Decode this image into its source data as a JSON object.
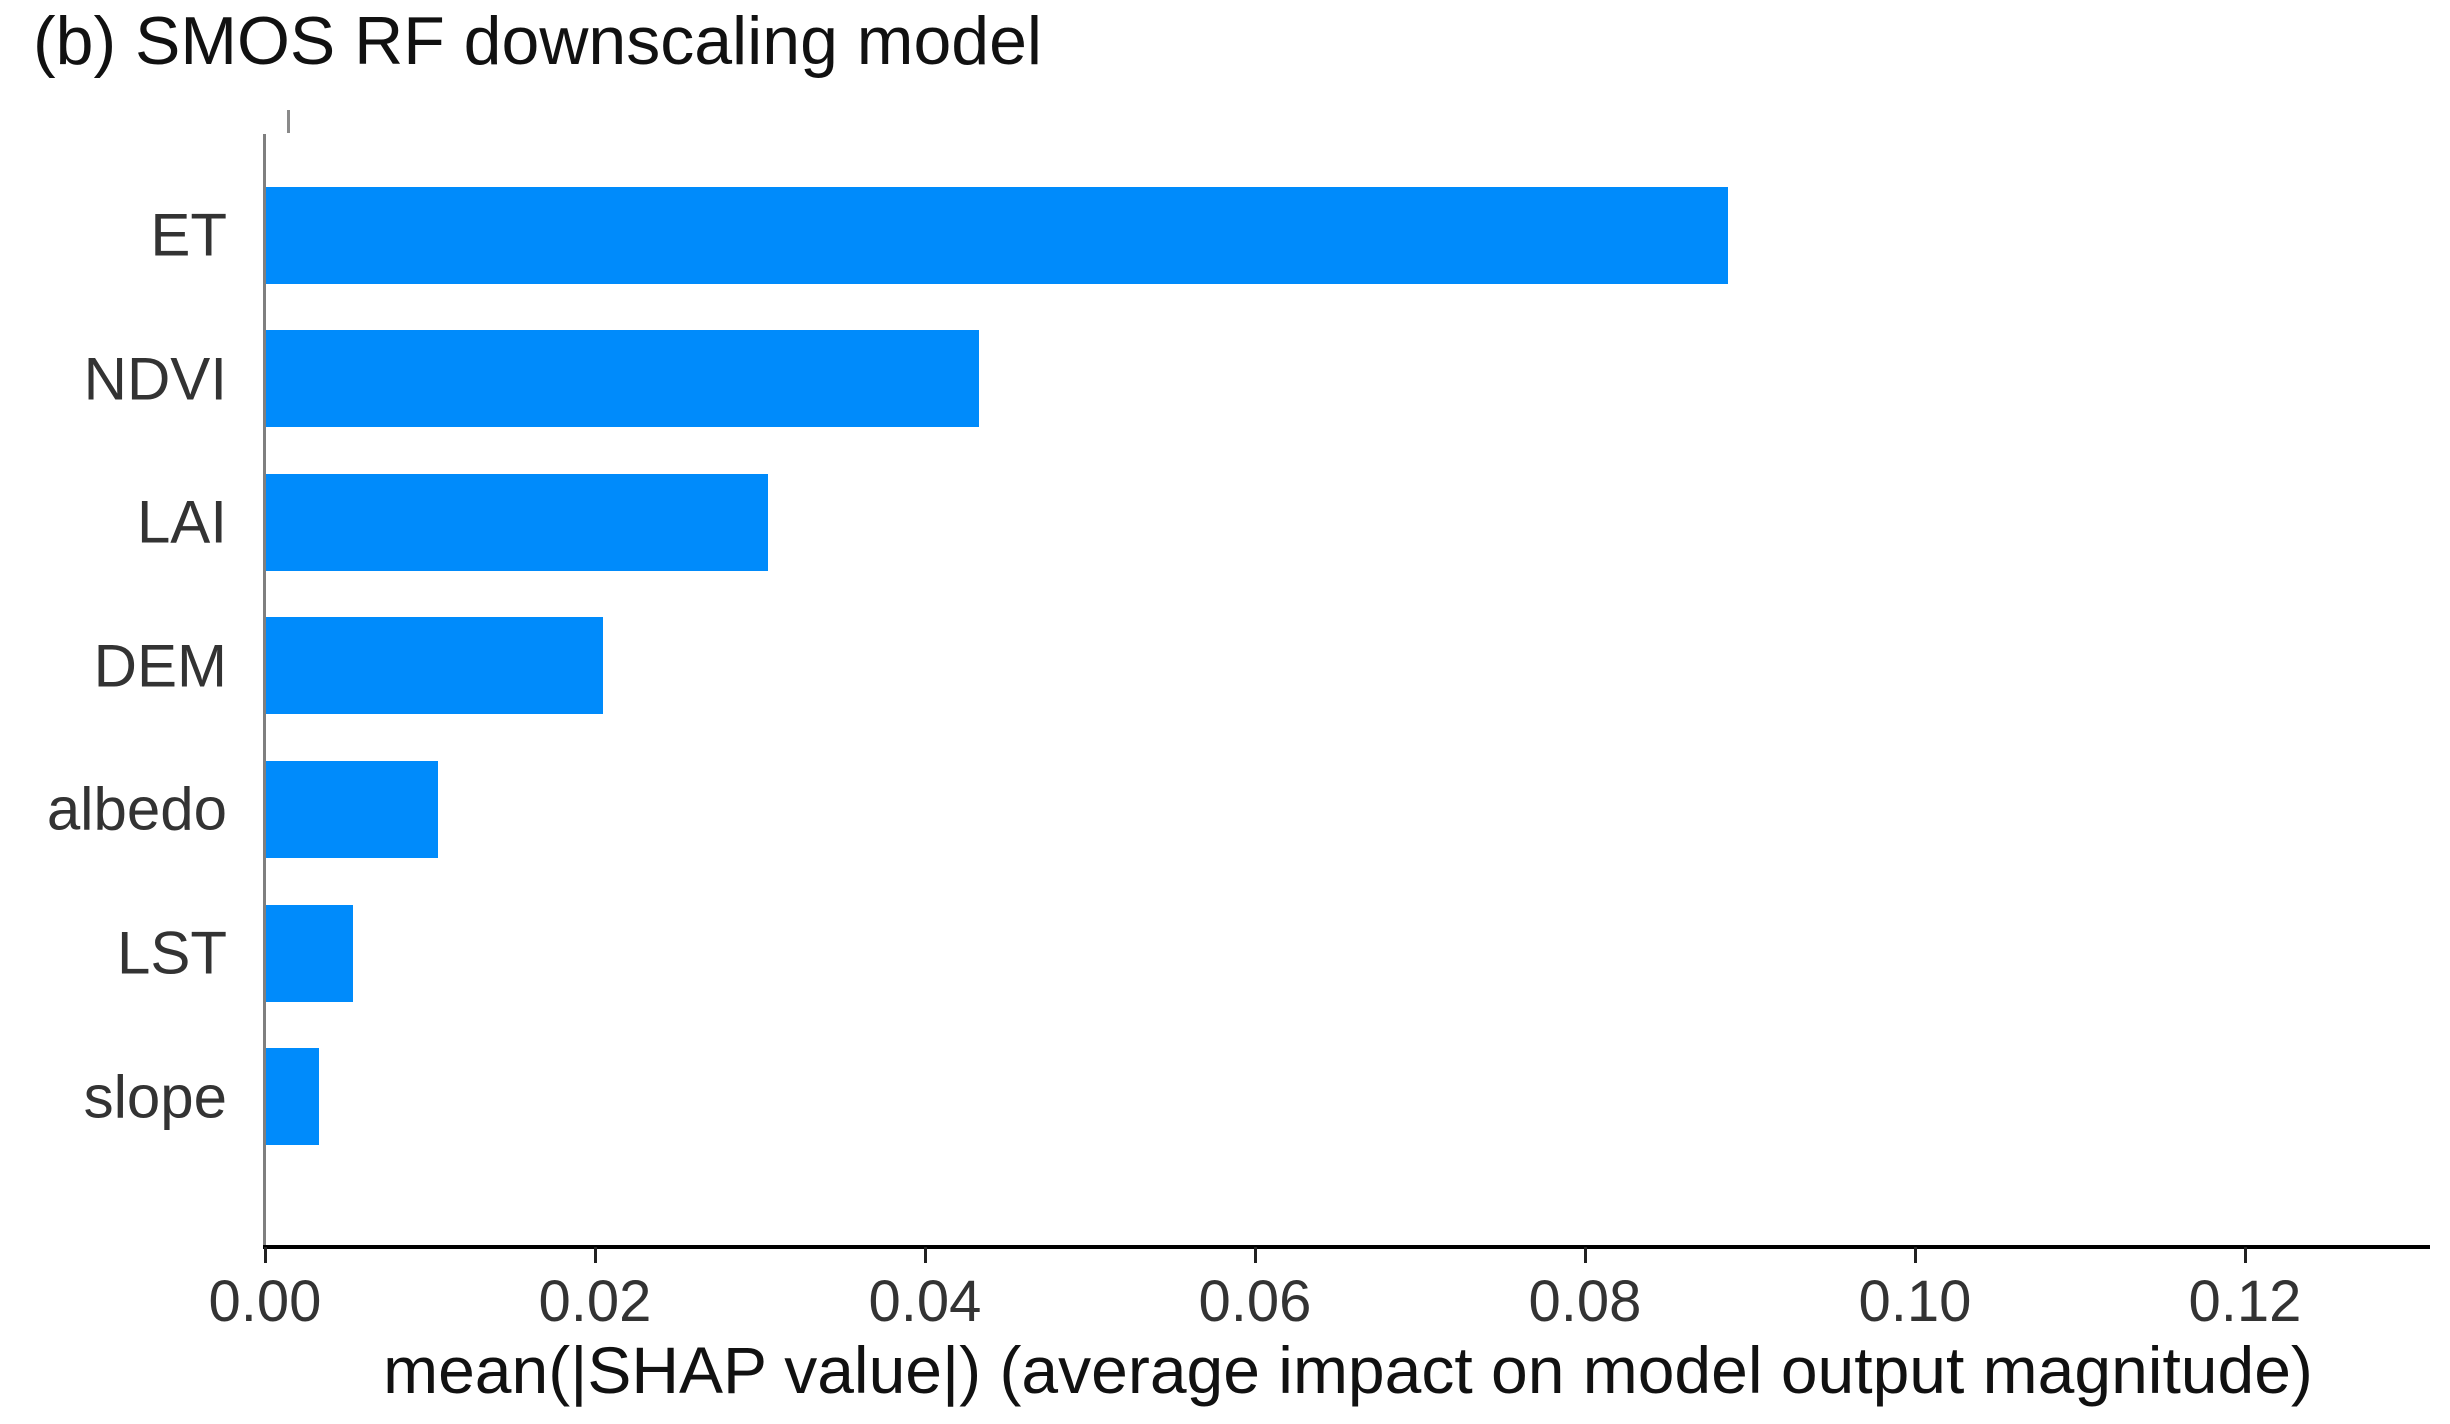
{
  "figure": {
    "title": "(b) SMOS RF downscaling model"
  },
  "chart_data": {
    "type": "bar",
    "orientation": "horizontal",
    "title": "(b) SMOS RF downscaling model",
    "categories": [
      "ET",
      "NDVI",
      "LAI",
      "DEM",
      "albedo",
      "LST",
      "slope"
    ],
    "values": [
      0.0886,
      0.0432,
      0.0304,
      0.0204,
      0.0104,
      0.0053,
      0.0032
    ],
    "xlabel": "mean(|SHAP value|) (average impact on model output magnitude)",
    "ylabel": "",
    "xlim": [
      0,
      0.1312
    ],
    "xticks": [
      0,
      0.02,
      0.04,
      0.06,
      0.08,
      0.1,
      0.12
    ],
    "xtick_labels": [
      "0.00",
      "0.02",
      "0.04",
      "0.06",
      "0.08",
      "0.10",
      "0.12"
    ],
    "bar_color": "#008bfb",
    "grid": false,
    "legend": false
  },
  "colors": {
    "bar": "#008bfb",
    "title_text": "#111111",
    "tick_text": "#333333",
    "left_spine": "#7f7f7f",
    "bottom_spine": "#000000"
  }
}
